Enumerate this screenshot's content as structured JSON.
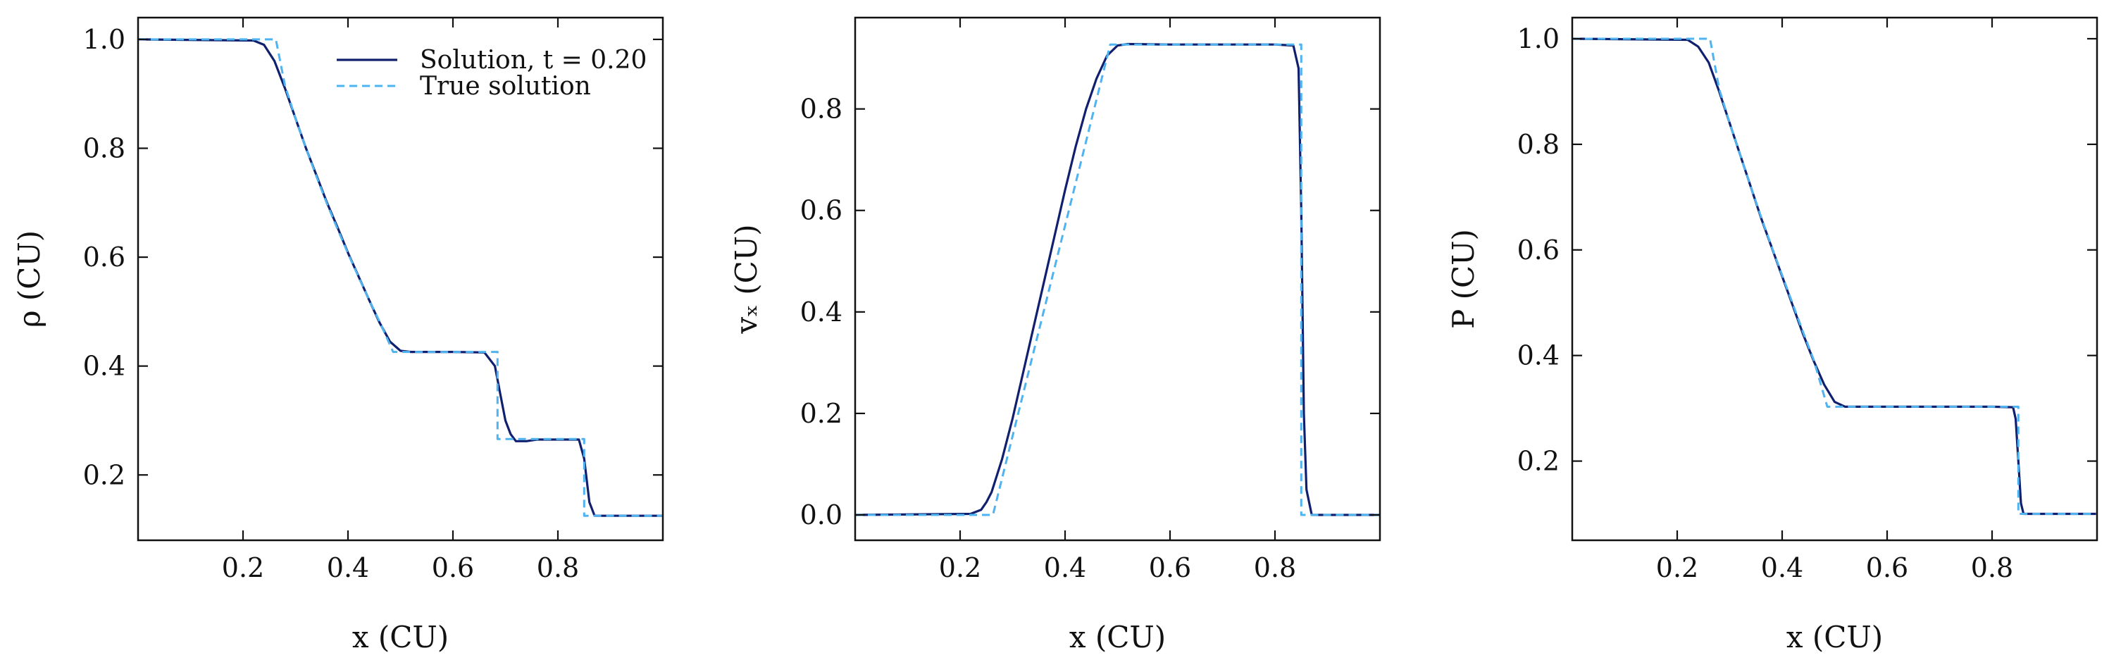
{
  "chart_data": [
    {
      "type": "line",
      "xlabel": "x (CU)",
      "ylabel": "ρ (CU)",
      "xlim": [
        0.0,
        1.0
      ],
      "ylim": [
        0.08,
        1.04
      ],
      "xticks": [
        0.2,
        0.4,
        0.6,
        0.8
      ],
      "yticks": [
        0.2,
        0.4,
        0.6,
        0.8,
        1.0
      ],
      "xtick_labels": [
        "0.2",
        "0.4",
        "0.6",
        "0.8"
      ],
      "ytick_labels": [
        "0.2",
        "0.4",
        "0.6",
        "0.8",
        "1.0"
      ],
      "grid": false,
      "legend": {
        "placement": "top-right",
        "entries": [
          {
            "label": "Solution, t = 0.20",
            "style": "solid"
          },
          {
            "label": "True solution",
            "style": "dashed"
          }
        ]
      },
      "series": [
        {
          "name": "Solution, t = 0.20",
          "style": "solid",
          "x": [
            0.0,
            0.22,
            0.24,
            0.26,
            0.28,
            0.3,
            0.32,
            0.34,
            0.36,
            0.38,
            0.4,
            0.42,
            0.44,
            0.46,
            0.48,
            0.5,
            0.52,
            0.6,
            0.66,
            0.68,
            0.69,
            0.7,
            0.71,
            0.72,
            0.74,
            0.76,
            0.8,
            0.84,
            0.85,
            0.86,
            0.87,
            1.0
          ],
          "y": [
            1.0,
            0.998,
            0.99,
            0.96,
            0.91,
            0.855,
            0.8,
            0.75,
            0.7,
            0.655,
            0.608,
            0.565,
            0.522,
            0.48,
            0.445,
            0.428,
            0.426,
            0.426,
            0.425,
            0.4,
            0.35,
            0.3,
            0.275,
            0.262,
            0.262,
            0.265,
            0.265,
            0.265,
            0.23,
            0.15,
            0.125,
            0.125
          ]
        },
        {
          "name": "True solution",
          "style": "dashed",
          "x": [
            0.0,
            0.2625,
            0.28,
            0.3,
            0.32,
            0.34,
            0.36,
            0.38,
            0.4,
            0.42,
            0.44,
            0.46,
            0.486,
            0.685,
            0.685,
            0.85,
            0.85,
            1.0
          ],
          "y": [
            1.0,
            1.0,
            0.915,
            0.855,
            0.8,
            0.748,
            0.698,
            0.652,
            0.607,
            0.564,
            0.522,
            0.482,
            0.426,
            0.426,
            0.266,
            0.266,
            0.125,
            0.125
          ]
        }
      ]
    },
    {
      "type": "line",
      "xlabel": "x (CU)",
      "ylabel": "vₓ (CU)",
      "xlim": [
        0.0,
        1.0
      ],
      "ylim": [
        -0.05,
        0.98
      ],
      "xticks": [
        0.2,
        0.4,
        0.6,
        0.8
      ],
      "yticks": [
        0.0,
        0.2,
        0.4,
        0.6,
        0.8
      ],
      "xtick_labels": [
        "0.2",
        "0.4",
        "0.6",
        "0.8"
      ],
      "ytick_labels": [
        "0.0",
        "0.2",
        "0.4",
        "0.6",
        "0.8"
      ],
      "grid": false,
      "series": [
        {
          "name": "Solution, t = 0.20",
          "style": "solid",
          "x": [
            0.0,
            0.22,
            0.24,
            0.25,
            0.26,
            0.28,
            0.3,
            0.32,
            0.34,
            0.36,
            0.38,
            0.4,
            0.42,
            0.44,
            0.46,
            0.48,
            0.5,
            0.52,
            0.6,
            0.7,
            0.8,
            0.835,
            0.845,
            0.85,
            0.855,
            0.86,
            0.87,
            1.0
          ],
          "y": [
            0.0,
            0.002,
            0.01,
            0.025,
            0.045,
            0.11,
            0.19,
            0.28,
            0.37,
            0.46,
            0.55,
            0.64,
            0.725,
            0.8,
            0.86,
            0.905,
            0.925,
            0.928,
            0.927,
            0.927,
            0.927,
            0.925,
            0.88,
            0.6,
            0.2,
            0.05,
            0.0,
            0.0
          ]
        },
        {
          "name": "True solution",
          "style": "dashed",
          "x": [
            0.0,
            0.2625,
            0.486,
            0.85,
            0.85,
            1.0
          ],
          "y": [
            0.0,
            0.0,
            0.927,
            0.927,
            0.0,
            0.0
          ]
        }
      ]
    },
    {
      "type": "line",
      "xlabel": "x (CU)",
      "ylabel": "P (CU)",
      "xlim": [
        0.0,
        1.0
      ],
      "ylim": [
        0.05,
        1.04
      ],
      "xticks": [
        0.2,
        0.4,
        0.6,
        0.8
      ],
      "yticks": [
        0.2,
        0.4,
        0.6,
        0.8,
        1.0
      ],
      "xtick_labels": [
        "0.2",
        "0.4",
        "0.6",
        "0.8"
      ],
      "ytick_labels": [
        "0.2",
        "0.4",
        "0.6",
        "0.8",
        "1.0"
      ],
      "grid": false,
      "series": [
        {
          "name": "Solution, t = 0.20",
          "style": "solid",
          "x": [
            0.0,
            0.22,
            0.24,
            0.26,
            0.28,
            0.3,
            0.32,
            0.34,
            0.36,
            0.38,
            0.4,
            0.42,
            0.44,
            0.46,
            0.48,
            0.5,
            0.52,
            0.6,
            0.7,
            0.8,
            0.84,
            0.845,
            0.85,
            0.855,
            0.86,
            1.0
          ],
          "y": [
            1.0,
            0.998,
            0.985,
            0.955,
            0.9,
            0.84,
            0.78,
            0.72,
            0.66,
            0.605,
            0.55,
            0.495,
            0.44,
            0.39,
            0.345,
            0.312,
            0.303,
            0.303,
            0.303,
            0.303,
            0.302,
            0.28,
            0.2,
            0.12,
            0.1,
            0.1
          ]
        },
        {
          "name": "True solution",
          "style": "dashed",
          "x": [
            0.0,
            0.2625,
            0.28,
            0.3,
            0.32,
            0.34,
            0.36,
            0.38,
            0.4,
            0.42,
            0.44,
            0.46,
            0.486,
            0.85,
            0.85,
            1.0
          ],
          "y": [
            1.0,
            1.0,
            0.905,
            0.84,
            0.78,
            0.72,
            0.662,
            0.606,
            0.552,
            0.498,
            0.444,
            0.392,
            0.303,
            0.303,
            0.1,
            0.1
          ]
        }
      ]
    }
  ],
  "colors": {
    "solution": "#10206e",
    "true_solution": "#4fb3f0",
    "axes": "#111111"
  }
}
